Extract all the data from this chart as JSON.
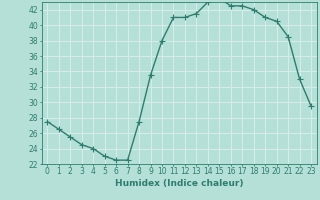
{
  "x": [
    0,
    1,
    2,
    3,
    4,
    5,
    6,
    7,
    8,
    9,
    10,
    11,
    12,
    13,
    14,
    15,
    16,
    17,
    18,
    19,
    20,
    21,
    22,
    23
  ],
  "y": [
    27.5,
    26.5,
    25.5,
    24.5,
    24.0,
    23.0,
    22.5,
    22.5,
    27.5,
    33.5,
    38.0,
    41.0,
    41.0,
    41.5,
    43.0,
    43.5,
    42.5,
    42.5,
    42.0,
    41.0,
    40.5,
    38.5,
    33.0,
    29.5
  ],
  "xlim": [
    -0.5,
    23.5
  ],
  "ylim": [
    22,
    43
  ],
  "yticks": [
    22,
    24,
    26,
    28,
    30,
    32,
    34,
    36,
    38,
    40,
    42
  ],
  "xticks": [
    0,
    1,
    2,
    3,
    4,
    5,
    6,
    7,
    8,
    9,
    10,
    11,
    12,
    13,
    14,
    15,
    16,
    17,
    18,
    19,
    20,
    21,
    22,
    23
  ],
  "xlabel": "Humidex (Indice chaleur)",
  "line_color": "#2e7d6e",
  "marker": "+",
  "bg_color": "#b5e0d8",
  "grid_color": "#d8ede9",
  "axis_color": "#2e7d6e",
  "xlabel_fontsize": 6.5,
  "tick_fontsize": 5.5,
  "linewidth": 1.0,
  "markersize": 4,
  "markeredgewidth": 0.8
}
